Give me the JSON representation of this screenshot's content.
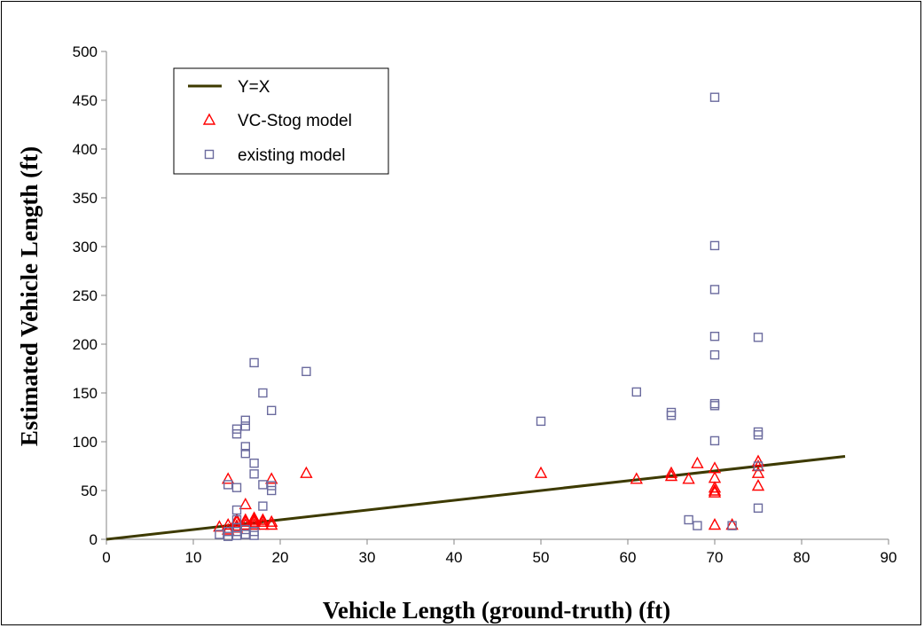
{
  "chart_data": {
    "type": "scatter",
    "title": "",
    "xlabel": "Vehicle Length (ground-truth) (ft)",
    "ylabel": "Estimated Vehicle Length (ft)",
    "xlim": [
      0,
      90
    ],
    "ylim": [
      0,
      500
    ],
    "x_ticks": [
      "0",
      "10",
      "20",
      "30",
      "40",
      "50",
      "60",
      "70",
      "80",
      "90"
    ],
    "y_ticks": [
      "0",
      "50",
      "100",
      "150",
      "200",
      "250",
      "300",
      "350",
      "400",
      "450",
      "500"
    ],
    "grid": false,
    "legend_position": "top-left",
    "series": [
      {
        "name": "Y=X",
        "kind": "line",
        "color": "#3d3a00",
        "points": [
          [
            0,
            0
          ],
          [
            85,
            85
          ]
        ]
      },
      {
        "name": "VC-Stog model",
        "kind": "triangle",
        "color": "#ff0000",
        "points": [
          [
            13,
            13
          ],
          [
            14,
            15
          ],
          [
            14,
            62
          ],
          [
            14,
            10
          ],
          [
            15,
            18
          ],
          [
            15,
            12
          ],
          [
            15,
            20
          ],
          [
            15,
            14
          ],
          [
            16,
            36
          ],
          [
            16,
            18
          ],
          [
            16,
            15
          ],
          [
            16,
            20
          ],
          [
            17,
            20
          ],
          [
            17,
            15
          ],
          [
            17,
            18
          ],
          [
            17,
            22
          ],
          [
            18,
            18
          ],
          [
            18,
            15
          ],
          [
            18,
            20
          ],
          [
            19,
            15
          ],
          [
            19,
            18
          ],
          [
            19,
            62
          ],
          [
            23,
            68
          ],
          [
            50,
            68
          ],
          [
            61,
            62
          ],
          [
            65,
            65
          ],
          [
            65,
            68
          ],
          [
            67,
            62
          ],
          [
            68,
            78
          ],
          [
            70,
            73
          ],
          [
            70,
            63
          ],
          [
            70,
            53
          ],
          [
            70,
            50
          ],
          [
            70,
            48
          ],
          [
            70,
            15
          ],
          [
            72,
            15
          ],
          [
            75,
            80
          ],
          [
            75,
            75
          ],
          [
            75,
            68
          ],
          [
            75,
            55
          ]
        ]
      },
      {
        "name": "existing model",
        "kind": "square",
        "color": "#6b6b9e",
        "points": [
          [
            13,
            5
          ],
          [
            14,
            3
          ],
          [
            14,
            8
          ],
          [
            14,
            56
          ],
          [
            15,
            113
          ],
          [
            15,
            108
          ],
          [
            15,
            53
          ],
          [
            15,
            30
          ],
          [
            15,
            20
          ],
          [
            15,
            12
          ],
          [
            15,
            8
          ],
          [
            15,
            4
          ],
          [
            16,
            122
          ],
          [
            16,
            116
          ],
          [
            16,
            95
          ],
          [
            16,
            88
          ],
          [
            16,
            10
          ],
          [
            16,
            5
          ],
          [
            17,
            181
          ],
          [
            17,
            78
          ],
          [
            17,
            67
          ],
          [
            17,
            8
          ],
          [
            17,
            4
          ],
          [
            18,
            150
          ],
          [
            18,
            56
          ],
          [
            18,
            34
          ],
          [
            19,
            132
          ],
          [
            19,
            55
          ],
          [
            19,
            50
          ],
          [
            23,
            172
          ],
          [
            50,
            121
          ],
          [
            61,
            151
          ],
          [
            65,
            130
          ],
          [
            65,
            127
          ],
          [
            67,
            20
          ],
          [
            68,
            14
          ],
          [
            70,
            453
          ],
          [
            70,
            301
          ],
          [
            70,
            256
          ],
          [
            70,
            208
          ],
          [
            70,
            189
          ],
          [
            70,
            139
          ],
          [
            70,
            137
          ],
          [
            70,
            101
          ],
          [
            72,
            14
          ],
          [
            75,
            207
          ],
          [
            75,
            110
          ],
          [
            75,
            107
          ],
          [
            75,
            75
          ],
          [
            75,
            32
          ]
        ]
      }
    ]
  }
}
